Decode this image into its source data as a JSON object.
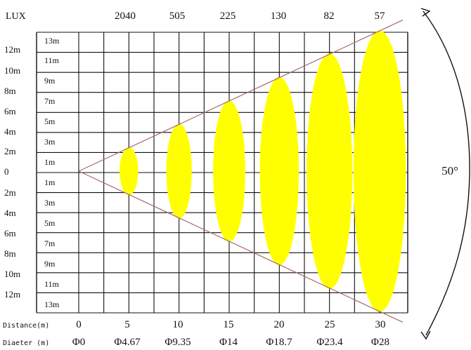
{
  "diagram": {
    "lux_label": "LUX",
    "lux_values": [
      "2040",
      "505",
      "225",
      "130",
      "82",
      "57"
    ],
    "left_scale": {
      "upper": [
        "12m",
        "10m",
        "8m",
        "6m",
        "4m",
        "2m"
      ],
      "center": "0",
      "lower": [
        "2m",
        "4m",
        "6m",
        "8m",
        "10m",
        "12m"
      ]
    },
    "inner_scale": {
      "upper": [
        "13m",
        "11m",
        "9m",
        "7m",
        "5m",
        "3m",
        "1m"
      ],
      "lower": [
        "1m",
        "3m",
        "5m",
        "7m",
        "9m",
        "11m",
        "13m"
      ]
    },
    "distance_label": "Distance(m)",
    "distance_values": [
      "0",
      "5",
      "10",
      "15",
      "20",
      "25",
      "30"
    ],
    "diameter_label": "Diaeter (m)",
    "diameter_values": [
      "Φ0",
      "Φ4.67",
      "Φ9.35",
      "Φ14",
      "Φ18.7",
      "Φ23.4",
      "Φ28"
    ],
    "beam_angle": "50°"
  },
  "colors": {
    "background": "#ffffff",
    "grid": "#111111",
    "beam": "#ffff00",
    "beam_edge": "#a66b6b",
    "text": "#111111"
  },
  "chart_data": {
    "type": "beam-spread",
    "distance_m": [
      0,
      5,
      10,
      15,
      20,
      25,
      30
    ],
    "diameter_m": [
      0,
      4.67,
      9.35,
      14,
      18.7,
      23.4,
      28
    ],
    "lux_distances_m": [
      5,
      10,
      15,
      20,
      25,
      30
    ],
    "lux": [
      2040,
      505,
      225,
      130,
      82,
      57
    ],
    "beam_angle_deg": 50,
    "vertical_axis_m": [
      -12,
      -10,
      -8,
      -6,
      -4,
      -2,
      0,
      2,
      4,
      6,
      8,
      10,
      12
    ],
    "inner_axis_m": [
      -13,
      -11,
      -9,
      -7,
      -5,
      -3,
      -1,
      1,
      3,
      5,
      7,
      9,
      11,
      13
    ]
  }
}
